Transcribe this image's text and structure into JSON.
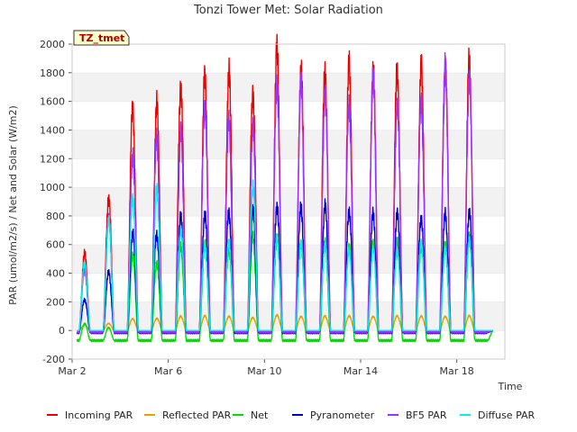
{
  "chart_data": {
    "type": "line",
    "title": "Tonzi Tower Met: Solar Radiation",
    "xlabel": "Time",
    "ylabel": "PAR (umol/m2/s) / Net and Solar (W/m2)",
    "xlim": [
      2.0,
      20.0
    ],
    "ylim": [
      -200,
      2000
    ],
    "y_ticks": [
      -200,
      0,
      200,
      400,
      600,
      800,
      1000,
      1200,
      1400,
      1600,
      1800,
      2000
    ],
    "x_ticks": [
      {
        "value": 2,
        "label": "Mar 2"
      },
      {
        "value": 6,
        "label": "Mar 6"
      },
      {
        "value": 10,
        "label": "Mar 10"
      },
      {
        "value": 14,
        "label": "Mar 14"
      },
      {
        "value": 18,
        "label": "Mar 18"
      }
    ],
    "badge": "TZ_tmet",
    "grid": "horizontal bands",
    "legend_position": "bottom",
    "x_start": 2.2,
    "x_end": 19.5,
    "days": [
      2,
      3,
      4,
      5,
      6,
      7,
      8,
      9,
      10,
      11,
      12,
      13,
      14,
      15,
      16,
      17,
      18,
      19
    ],
    "series": [
      {
        "name": "Incoming PAR",
        "color": "#ee0000",
        "night": 0,
        "peaks": [
          530,
          940,
          1540,
          1570,
          1730,
          1750,
          1800,
          1680,
          1935,
          1820,
          1830,
          1825,
          1835,
          1825,
          1815,
          1870,
          1885,
          0
        ]
      },
      {
        "name": "Reflected PAR",
        "color": "#e8a000",
        "night": 0,
        "peaks": [
          40,
          50,
          80,
          85,
          100,
          100,
          100,
          90,
          105,
          100,
          100,
          100,
          100,
          100,
          100,
          100,
          100,
          0
        ]
      },
      {
        "name": "Net",
        "color": "#00dd00",
        "night": -70,
        "peaks": [
          50,
          20,
          510,
          480,
          580,
          600,
          580,
          640,
          650,
          620,
          600,
          590,
          620,
          610,
          600,
          600,
          640,
          0
        ]
      },
      {
        "name": "Pyranometer",
        "color": "#0000cc",
        "night": -15,
        "peaks": [
          220,
          400,
          680,
          680,
          780,
          820,
          830,
          820,
          880,
          860,
          860,
          850,
          810,
          810,
          800,
          800,
          825,
          0
        ]
      },
      {
        "name": "BF5 PAR",
        "color": "#9933ff",
        "night": -10,
        "peaks": [
          420,
          770,
          1250,
          1340,
          1370,
          1600,
          1450,
          1410,
          1750,
          1700,
          1650,
          1600,
          1730,
          1600,
          1610,
          1810,
          1790,
          0
        ]
      },
      {
        "name": "Diffuse PAR",
        "color": "#00eeee",
        "night": 0,
        "peaks": [
          460,
          770,
          940,
          960,
          700,
          600,
          600,
          1020,
          650,
          600,
          600,
          550,
          560,
          560,
          600,
          560,
          640,
          0
        ]
      }
    ]
  }
}
